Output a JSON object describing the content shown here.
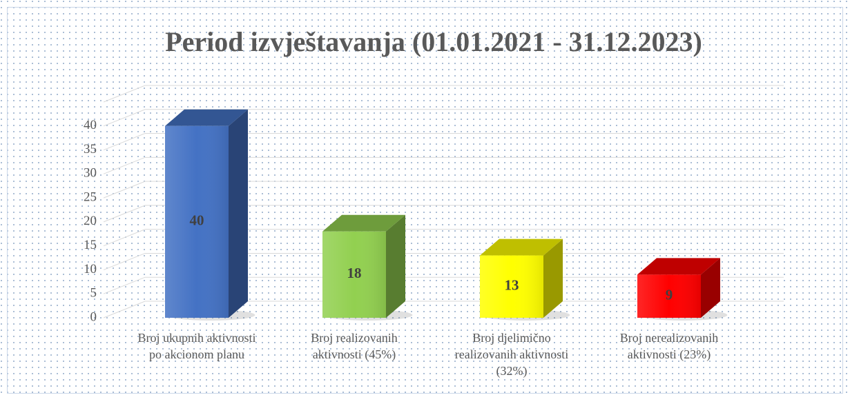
{
  "chart_data": {
    "type": "bar3d",
    "title": "Period izvještavanja (01.01.2021 - 31.12.2023)",
    "categories": [
      "Broj ukupnih aktivnosti po akcionom planu",
      "Broj realizovanih aktivnosti (45%)",
      "Broj djelimično realizovanih aktivnosti (32%)",
      "Broj nerealizovanih aktivnosti (23%)"
    ],
    "values": [
      40,
      18,
      13,
      9
    ],
    "colors": [
      "#4472c4",
      "#92d050",
      "#ffff00",
      "#ff0000"
    ],
    "ylim": [
      0,
      45
    ],
    "yticks": [
      0,
      5,
      10,
      15,
      20,
      25,
      30,
      35,
      40
    ],
    "grid": true
  }
}
